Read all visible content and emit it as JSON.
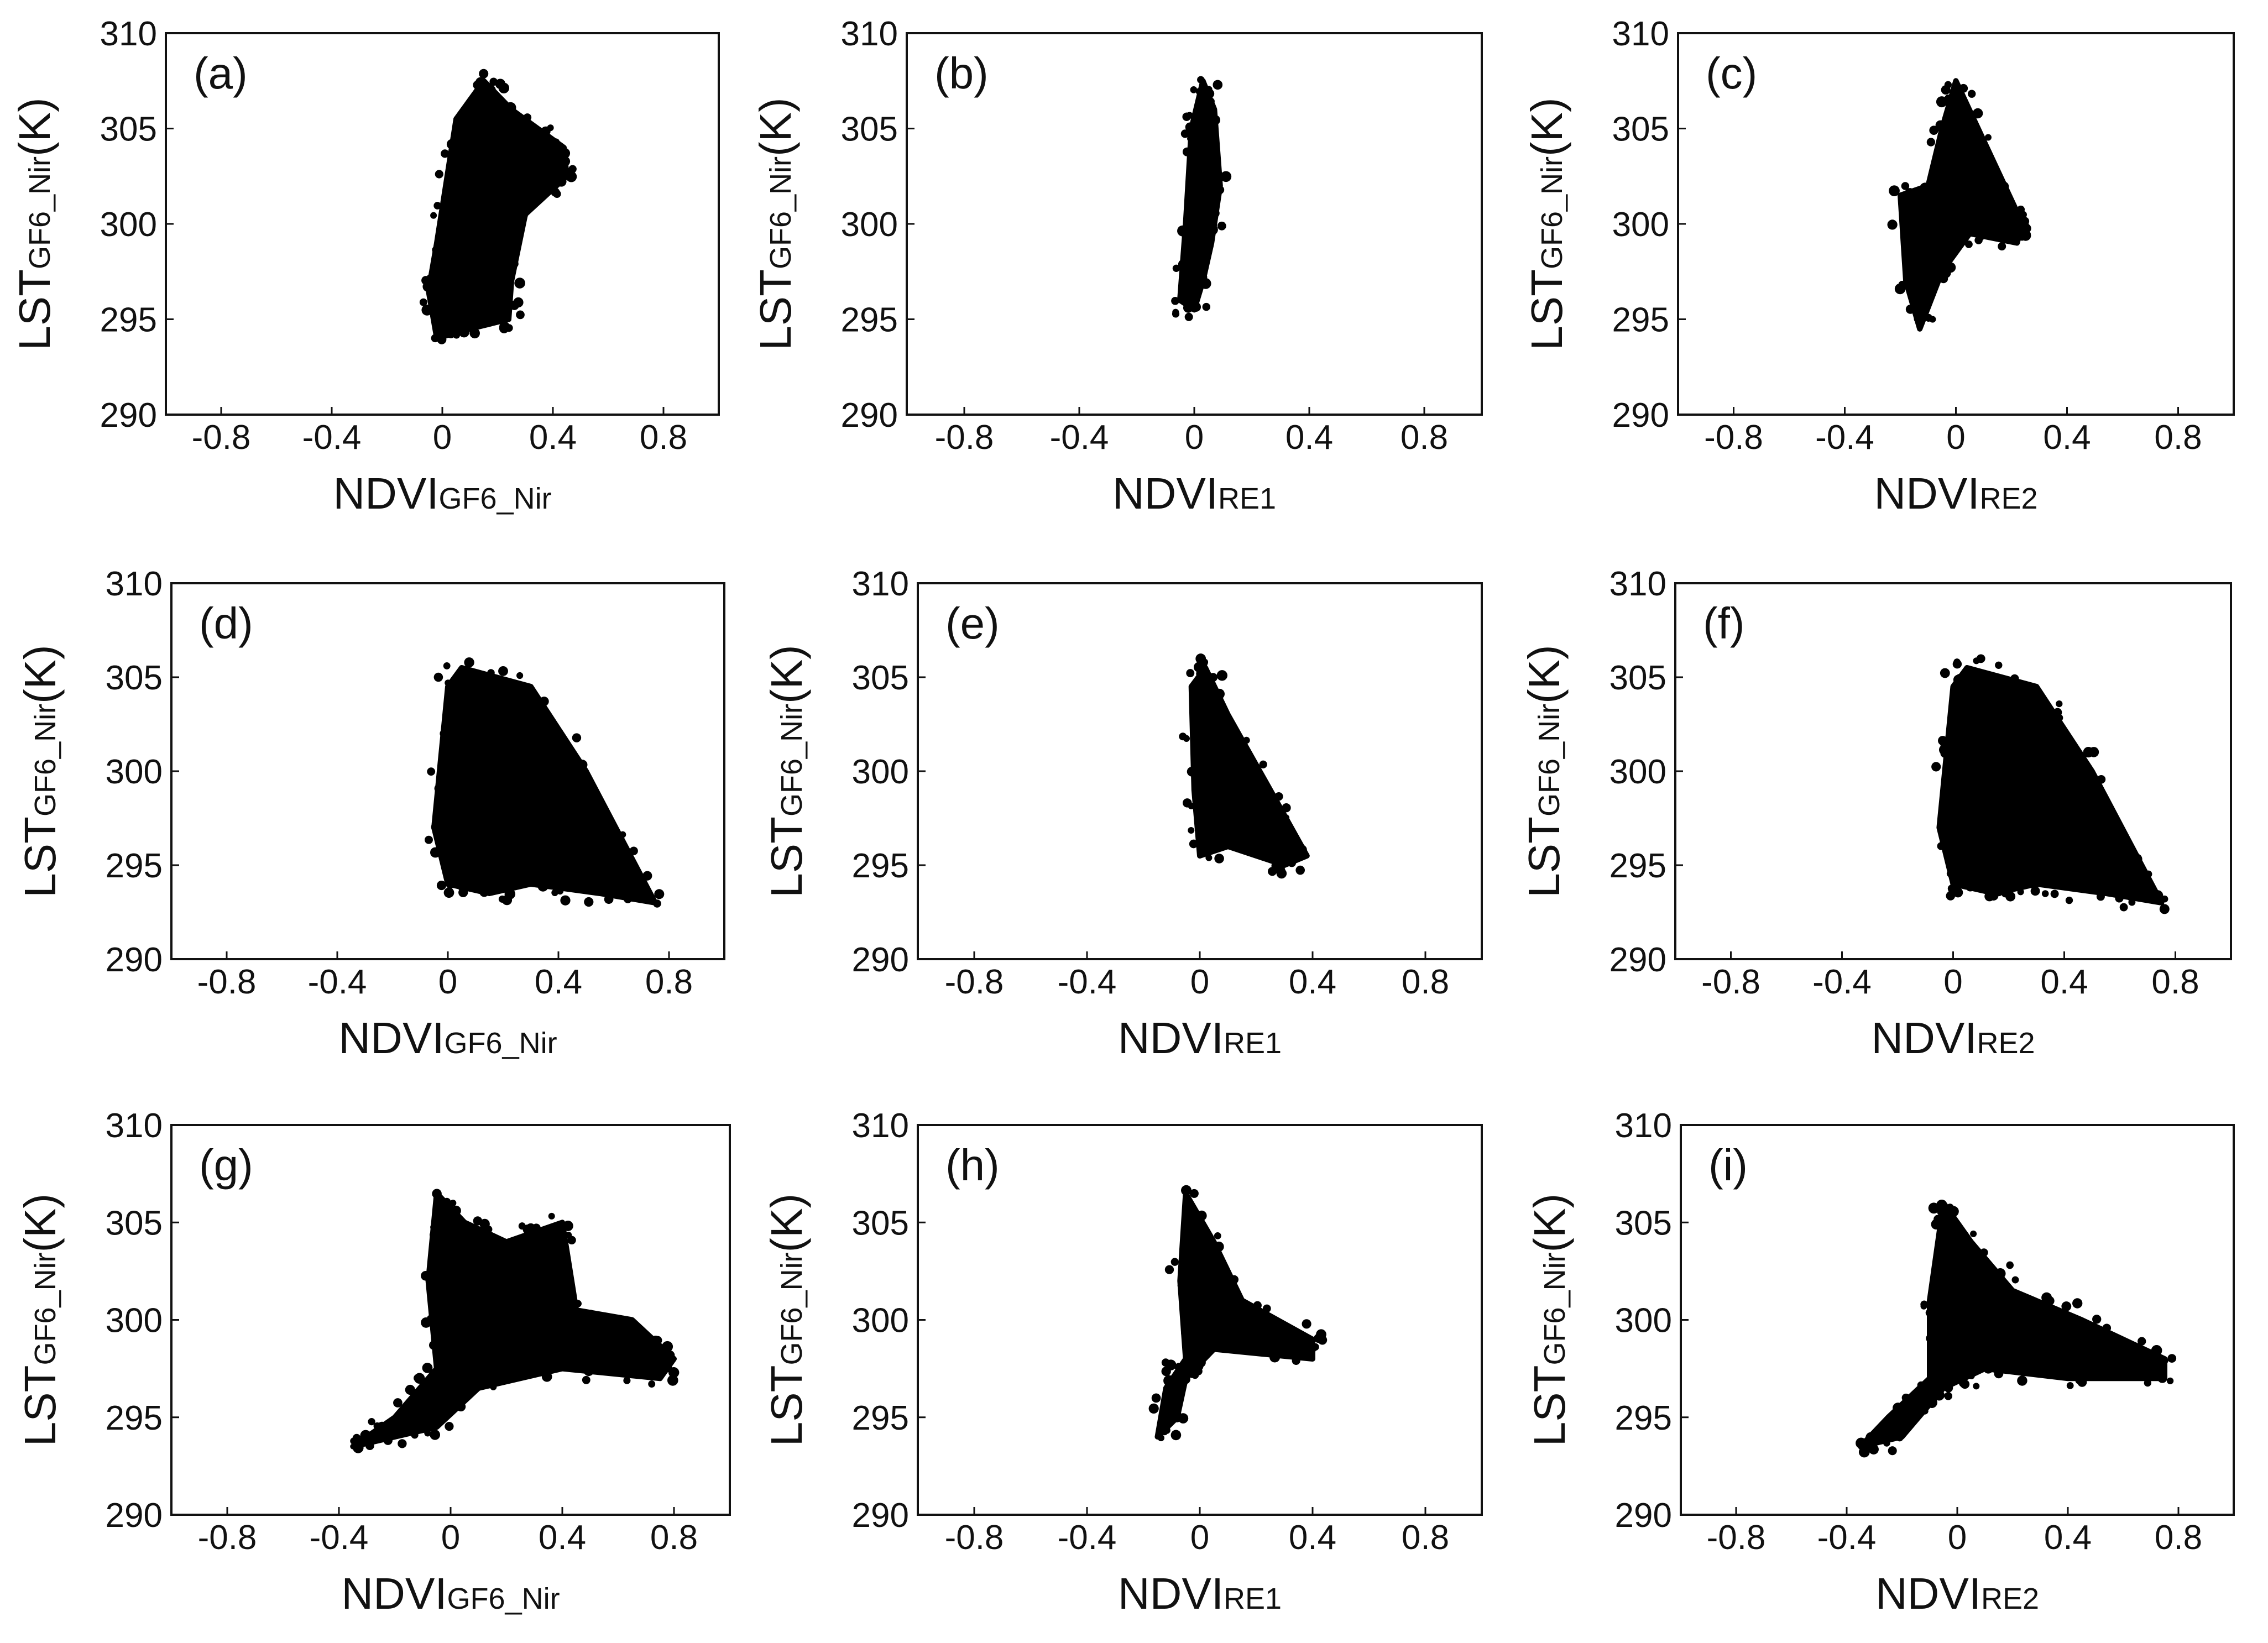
{
  "figure": {
    "ylabel_main": "LST",
    "ylabel_sub": "GF6_Nir",
    "ylabel_unit": "(K)",
    "xlabel_main": "NDVI"
  },
  "chart_data": [
    {
      "panel_label": "(a)",
      "type": "scatter",
      "xlabel_sub": "GF6_Nir",
      "xlim": [
        -1.0,
        1.0
      ],
      "ylim": [
        290,
        310
      ],
      "xticks": [
        "-0.8",
        "-0.4",
        "0",
        "0.4",
        "0.8"
      ],
      "yticks": [
        "290",
        "295",
        "300",
        "305",
        "310"
      ],
      "cloud_polygon": [
        [
          -0.02,
          294.0
        ],
        [
          -0.05,
          296.5
        ],
        [
          -0.02,
          299.0
        ],
        [
          0.05,
          305.5
        ],
        [
          0.15,
          307.5
        ],
        [
          0.25,
          306.0
        ],
        [
          0.44,
          304.0
        ],
        [
          0.45,
          302.5
        ],
        [
          0.3,
          300.5
        ],
        [
          0.25,
          297.0
        ],
        [
          0.24,
          295.0
        ],
        [
          0.1,
          294.5
        ]
      ]
    },
    {
      "panel_label": "(b)",
      "type": "scatter",
      "xlabel_sub": "RE1",
      "xlim": [
        -1.0,
        1.0
      ],
      "ylim": [
        290,
        310
      ],
      "xticks": [
        "-0.8",
        "-0.4",
        "0",
        "0.4",
        "0.8"
      ],
      "yticks": [
        "290",
        "295",
        "300",
        "305",
        "310"
      ],
      "cloud_polygon": [
        [
          -0.05,
          296.0
        ],
        [
          -0.03,
          300.0
        ],
        [
          -0.01,
          305.0
        ],
        [
          0.03,
          307.5
        ],
        [
          0.07,
          306.0
        ],
        [
          0.09,
          302.0
        ],
        [
          0.06,
          299.0
        ],
        [
          0.03,
          297.0
        ],
        [
          0.0,
          295.5
        ]
      ]
    },
    {
      "panel_label": "(c)",
      "type": "scatter",
      "xlabel_sub": "RE2",
      "xlim": [
        -1.0,
        1.0
      ],
      "ylim": [
        290,
        310
      ],
      "xticks": [
        "-0.8",
        "-0.4",
        "0",
        "0.4",
        "0.8"
      ],
      "yticks": [
        "290",
        "295",
        "300",
        "305",
        "310"
      ],
      "cloud_polygon": [
        [
          -0.2,
          301.5
        ],
        [
          -0.1,
          302.0
        ],
        [
          -0.05,
          305.0
        ],
        [
          0.0,
          307.5
        ],
        [
          0.08,
          305.0
        ],
        [
          0.24,
          300.0
        ],
        [
          0.22,
          299.0
        ],
        [
          0.05,
          299.5
        ],
        [
          -0.05,
          297.5
        ],
        [
          -0.13,
          294.5
        ],
        [
          -0.18,
          297.0
        ]
      ]
    },
    {
      "panel_label": "(d)",
      "type": "scatter",
      "xlabel_sub": "GF6_Nir",
      "xlim": [
        -1.0,
        1.0
      ],
      "ylim": [
        290,
        310
      ],
      "xticks": [
        "-0.8",
        "-0.4",
        "0",
        "0.4",
        "0.8"
      ],
      "yticks": [
        "290",
        "295",
        "300",
        "305",
        "310"
      ],
      "cloud_polygon": [
        [
          0.0,
          304.5
        ],
        [
          0.05,
          305.5
        ],
        [
          0.3,
          304.5
        ],
        [
          0.5,
          300.0
        ],
        [
          0.75,
          293.0
        ],
        [
          0.55,
          293.5
        ],
        [
          0.3,
          294.0
        ],
        [
          0.15,
          293.5
        ],
        [
          0.0,
          294.0
        ],
        [
          -0.05,
          297.0
        ]
      ]
    },
    {
      "panel_label": "(e)",
      "type": "scatter",
      "xlabel_sub": "RE1",
      "xlim": [
        -1.0,
        1.0
      ],
      "ylim": [
        290,
        310
      ],
      "xticks": [
        "-0.8",
        "-0.4",
        "0",
        "0.4",
        "0.8"
      ],
      "yticks": [
        "290",
        "295",
        "300",
        "305",
        "310"
      ],
      "cloud_polygon": [
        [
          -0.03,
          304.5
        ],
        [
          0.02,
          305.5
        ],
        [
          0.1,
          303.0
        ],
        [
          0.25,
          299.0
        ],
        [
          0.38,
          295.5
        ],
        [
          0.3,
          295.0
        ],
        [
          0.1,
          296.0
        ],
        [
          0.0,
          295.5
        ],
        [
          -0.02,
          299.0
        ]
      ]
    },
    {
      "panel_label": "(f)",
      "type": "scatter",
      "xlabel_sub": "RE2",
      "xlim": [
        -1.0,
        1.0
      ],
      "ylim": [
        290,
        310
      ],
      "xticks": [
        "-0.8",
        "-0.4",
        "0",
        "0.4",
        "0.8"
      ],
      "yticks": [
        "290",
        "295",
        "300",
        "305",
        "310"
      ],
      "cloud_polygon": [
        [
          0.0,
          304.5
        ],
        [
          0.05,
          305.5
        ],
        [
          0.3,
          304.5
        ],
        [
          0.5,
          300.0
        ],
        [
          0.75,
          293.0
        ],
        [
          0.55,
          293.5
        ],
        [
          0.3,
          294.0
        ],
        [
          0.15,
          293.5
        ],
        [
          0.0,
          294.0
        ],
        [
          -0.05,
          297.0
        ]
      ]
    },
    {
      "panel_label": "(g)",
      "type": "scatter",
      "xlabel_sub": "GF6_Nir",
      "xlim": [
        -1.0,
        1.0
      ],
      "ylim": [
        290,
        310
      ],
      "xticks": [
        "-0.8",
        "-0.4",
        "0",
        "0.4",
        "0.8"
      ],
      "yticks": [
        "290",
        "295",
        "300",
        "305",
        "310"
      ],
      "cloud_polygon": [
        [
          -0.05,
          306.5
        ],
        [
          0.05,
          305.0
        ],
        [
          0.2,
          304.0
        ],
        [
          0.4,
          305.0
        ],
        [
          0.45,
          300.5
        ],
        [
          0.65,
          300.0
        ],
        [
          0.8,
          298.0
        ],
        [
          0.75,
          297.0
        ],
        [
          0.4,
          297.5
        ],
        [
          0.1,
          296.5
        ],
        [
          -0.05,
          294.5
        ],
        [
          -0.2,
          294.0
        ],
        [
          -0.35,
          293.5
        ],
        [
          -0.2,
          295.0
        ],
        [
          -0.05,
          297.5
        ],
        [
          -0.08,
          302.0
        ]
      ]
    },
    {
      "panel_label": "(h)",
      "type": "scatter",
      "xlabel_sub": "RE1",
      "xlim": [
        -1.0,
        1.0
      ],
      "ylim": [
        290,
        310
      ],
      "xticks": [
        "-0.8",
        "-0.4",
        "0",
        "0.4",
        "0.8"
      ],
      "yticks": [
        "290",
        "295",
        "300",
        "305",
        "310"
      ],
      "cloud_polygon": [
        [
          -0.05,
          306.5
        ],
        [
          0.05,
          304.0
        ],
        [
          0.15,
          301.0
        ],
        [
          0.4,
          299.0
        ],
        [
          0.4,
          298.0
        ],
        [
          0.05,
          298.5
        ],
        [
          -0.05,
          297.0
        ],
        [
          -0.08,
          295.0
        ],
        [
          -0.15,
          294.0
        ],
        [
          -0.12,
          296.5
        ],
        [
          -0.05,
          298.0
        ],
        [
          -0.07,
          302.0
        ]
      ]
    },
    {
      "panel_label": "(i)",
      "type": "scatter",
      "xlabel_sub": "RE2",
      "xlim": [
        -1.0,
        1.0
      ],
      "ylim": [
        290,
        310
      ],
      "xticks": [
        "-0.8",
        "-0.4",
        "0",
        "0.4",
        "0.8"
      ],
      "yticks": [
        "290",
        "295",
        "300",
        "305",
        "310"
      ],
      "cloud_polygon": [
        [
          -0.05,
          306.0
        ],
        [
          0.05,
          304.0
        ],
        [
          0.2,
          301.5
        ],
        [
          0.45,
          300.0
        ],
        [
          0.75,
          298.0
        ],
        [
          0.75,
          297.0
        ],
        [
          0.4,
          297.0
        ],
        [
          0.1,
          297.5
        ],
        [
          -0.05,
          296.5
        ],
        [
          -0.2,
          294.0
        ],
        [
          -0.35,
          293.5
        ],
        [
          -0.25,
          295.0
        ],
        [
          -0.1,
          297.0
        ],
        [
          -0.1,
          301.0
        ]
      ]
    }
  ]
}
